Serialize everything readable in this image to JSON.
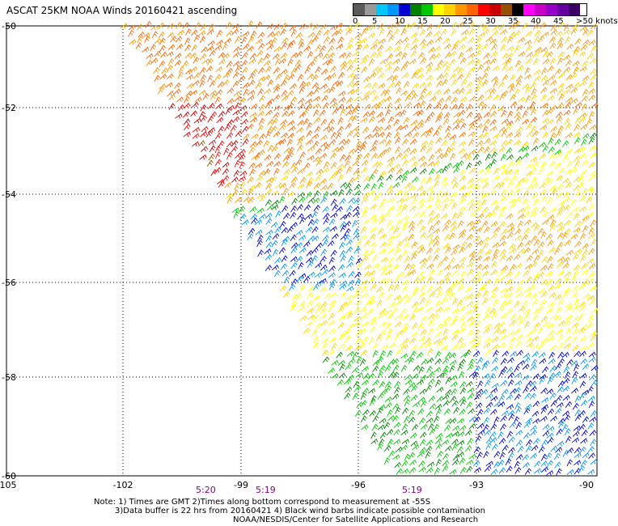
{
  "title": "ASCAT 25KM NOAA Winds 20160421 ascending",
  "scale": {
    "colors": [
      "#5a5a5a",
      "#9a9a9a",
      "#00c8ff",
      "#0096ff",
      "#0000d2",
      "#008200",
      "#00c800",
      "#ffff00",
      "#ffd200",
      "#ff9600",
      "#ff6400",
      "#ff0000",
      "#c80000",
      "#965000",
      "#000000",
      "#ff00ff",
      "#c800c8",
      "#9600c8",
      "#6400a0",
      "#3c0064"
    ],
    "labels": [
      "0",
      "5",
      "10",
      "15",
      "20",
      "25",
      "30",
      "35",
      "40",
      "45",
      ">50 knots"
    ]
  },
  "map": {
    "lat_ticks": [
      "-50",
      "-52",
      "-54",
      "-56",
      "-58",
      "-60"
    ],
    "lon_ticks": [
      "-105",
      "-102",
      "-99",
      "-96",
      "-93",
      "-90"
    ],
    "time_labels": [
      "5:20",
      "5:19",
      "5:19"
    ]
  },
  "notes": [
    "Note: 1) Times are GMT 2)Times along bottom correspond to measurement at -55S",
    "3)Data buffer is 22 hrs from 20160421 4) Black wind barbs indicate possible contamination",
    "NOAA/NESDIS/Center for Satellite Applications and Research"
  ]
}
